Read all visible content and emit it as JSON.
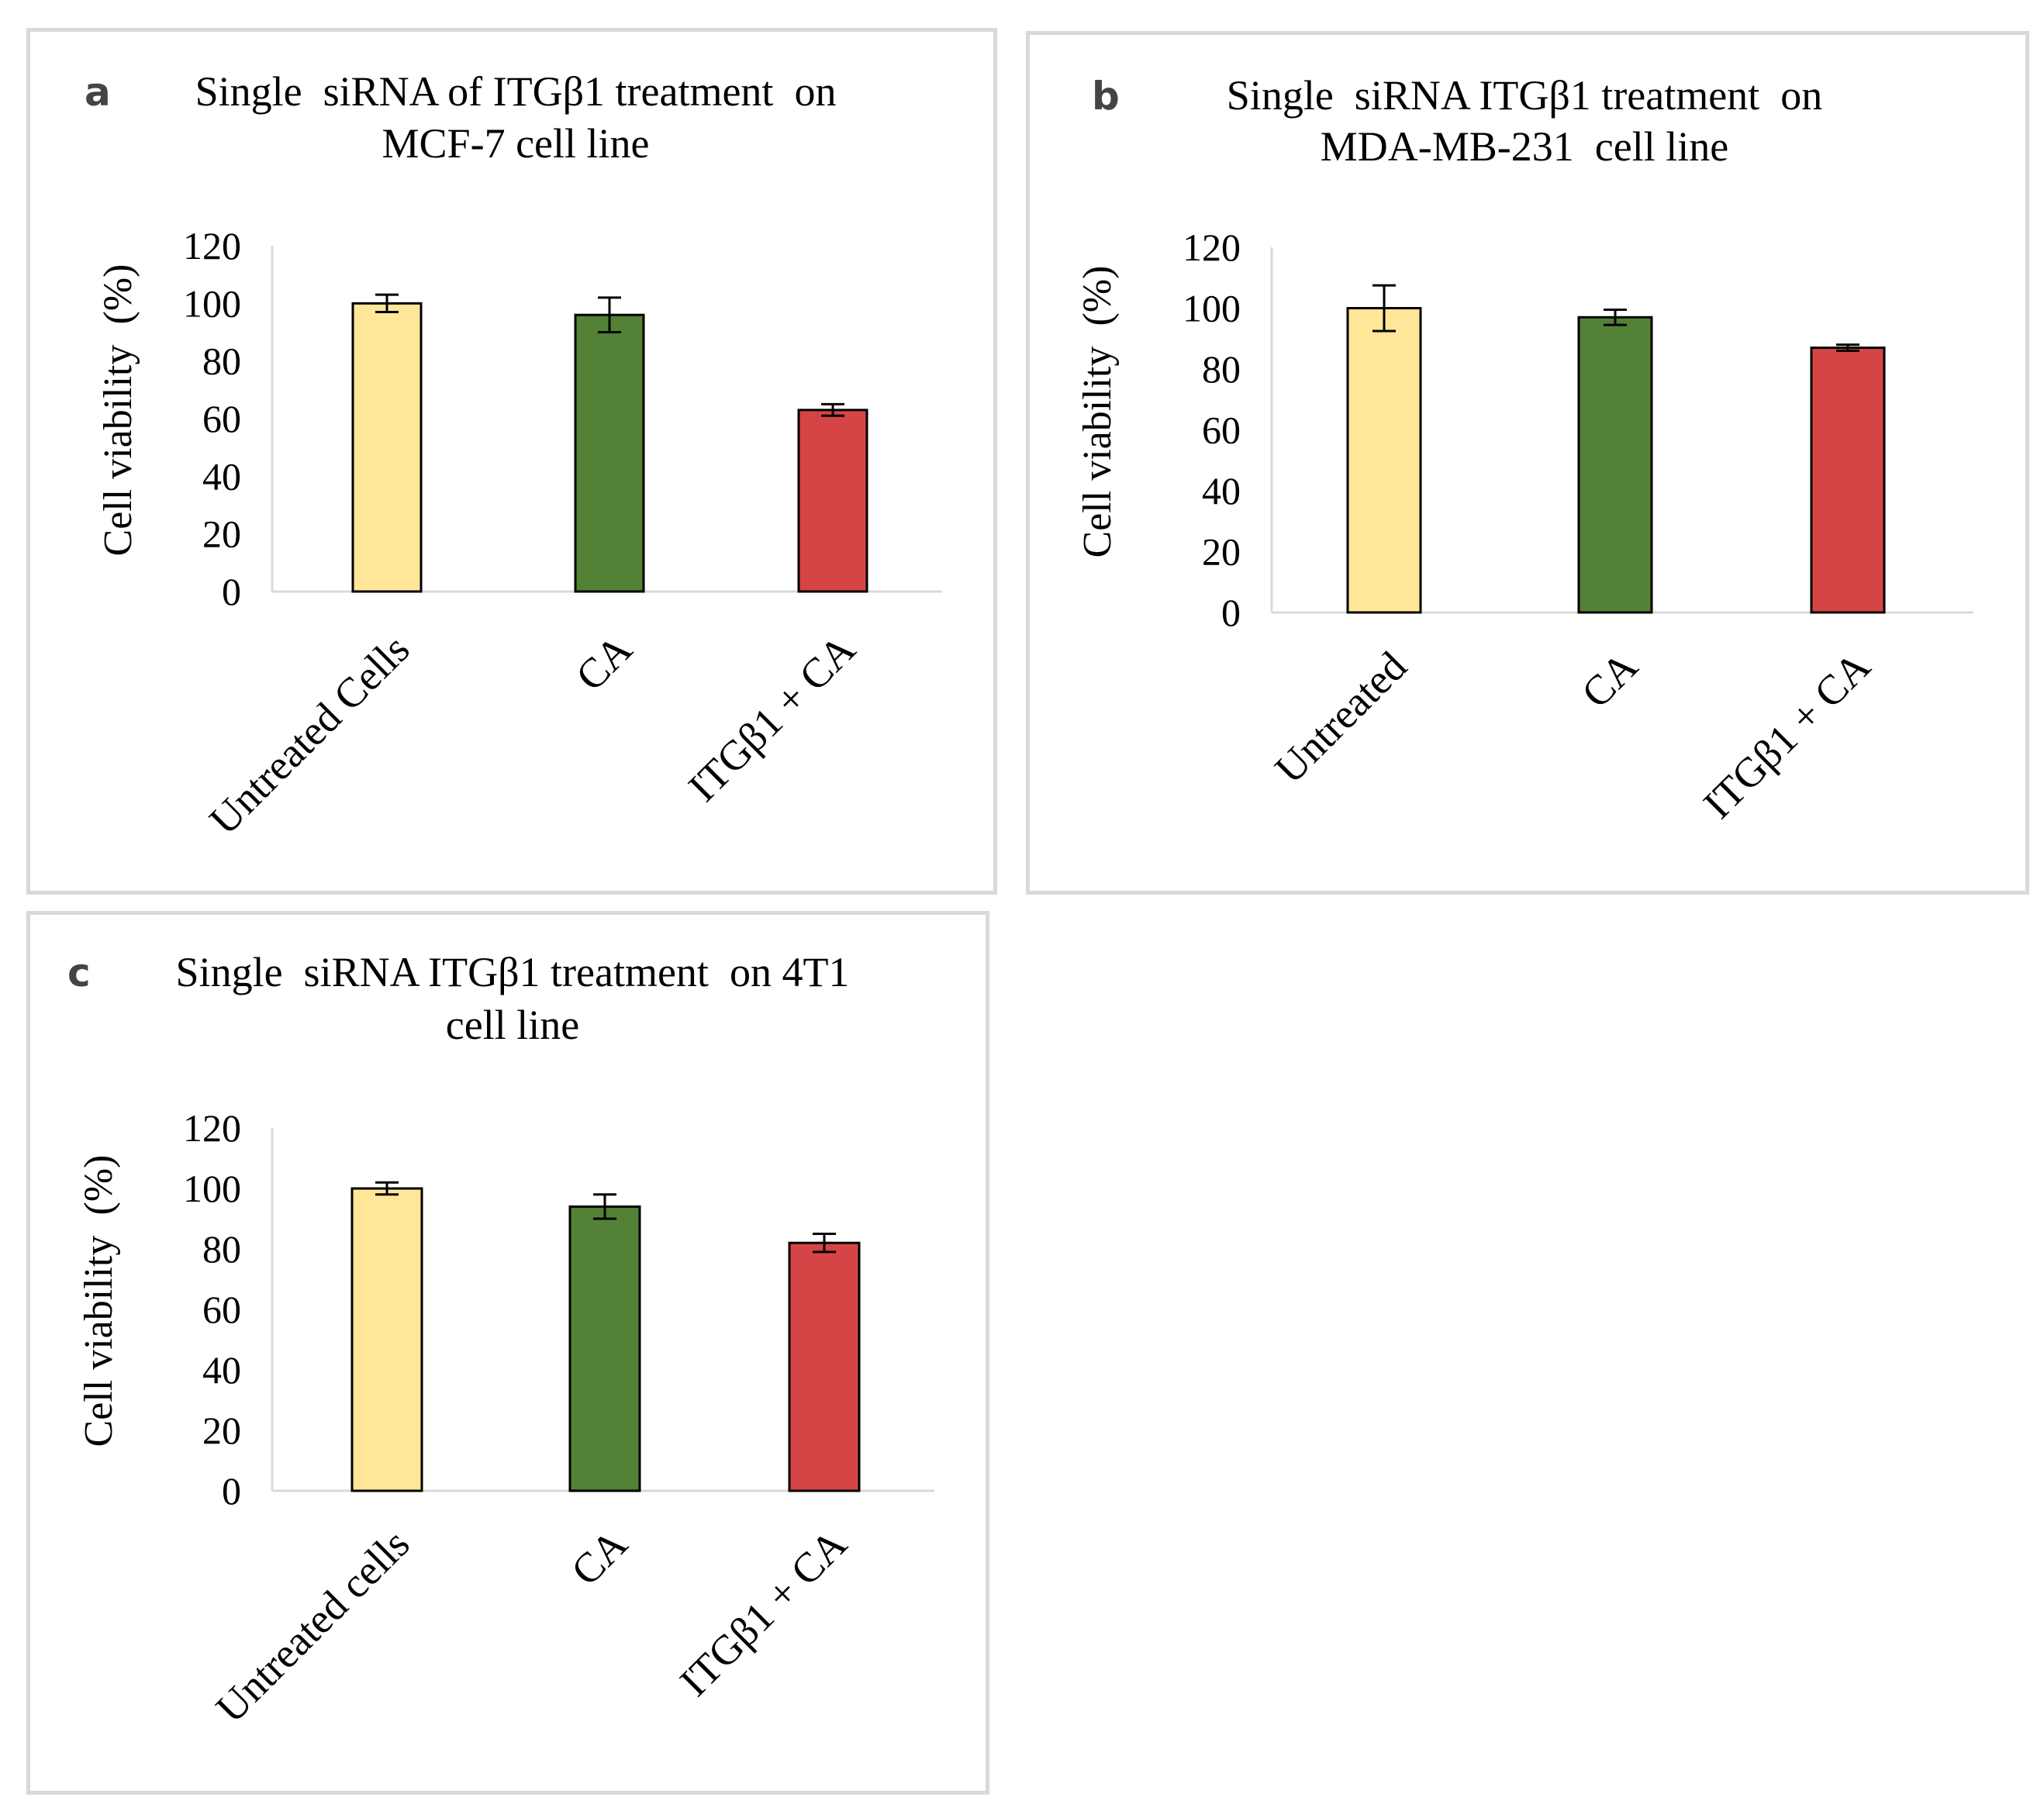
{
  "chart_data": [
    {
      "panel": "a",
      "type": "bar",
      "title": [
        "Single  siRNA of ITGβ1 treatment  on",
        "MCF-7 cell line"
      ],
      "xlabel": "",
      "ylabel": "Cell viability  (%)",
      "ylim": [
        0,
        120
      ],
      "yticks": [
        0,
        20,
        40,
        60,
        80,
        100,
        120
      ],
      "grid": false,
      "categories": [
        "Untreated Cells",
        "CA",
        "ITGβ1 + CA"
      ],
      "values": [
        100,
        96,
        63
      ],
      "errors": [
        3,
        6,
        2
      ],
      "colors": [
        "#ffe699",
        "#538135",
        "#d64545"
      ]
    },
    {
      "panel": "b",
      "type": "bar",
      "title": [
        "Single  siRNA ITGβ1 treatment  on",
        "MDA-MB-231  cell line"
      ],
      "xlabel": "",
      "ylabel": "Cell viability  (%)",
      "ylim": [
        0,
        120
      ],
      "yticks": [
        0,
        20,
        40,
        60,
        80,
        100,
        120
      ],
      "grid": false,
      "categories": [
        "Untreated",
        "CA",
        "ITGβ1 + CA"
      ],
      "values": [
        100,
        97,
        87
      ],
      "errors": [
        7.5,
        2.5,
        1
      ],
      "colors": [
        "#ffe699",
        "#538135",
        "#d64545"
      ]
    },
    {
      "panel": "c",
      "type": "bar",
      "title": [
        "Single  siRNA ITGβ1 treatment  on 4T1",
        "cell line"
      ],
      "xlabel": "",
      "ylabel": "Cell viability  (%)",
      "ylim": [
        0,
        120
      ],
      "yticks": [
        0,
        20,
        40,
        60,
        80,
        100,
        120
      ],
      "grid": false,
      "categories": [
        "Untreated cells",
        "CA",
        "ITGβ1 + CA"
      ],
      "values": [
        100,
        94,
        82
      ],
      "errors": [
        2,
        4,
        3
      ],
      "colors": [
        "#ffe699",
        "#538135",
        "#d64545"
      ]
    }
  ]
}
